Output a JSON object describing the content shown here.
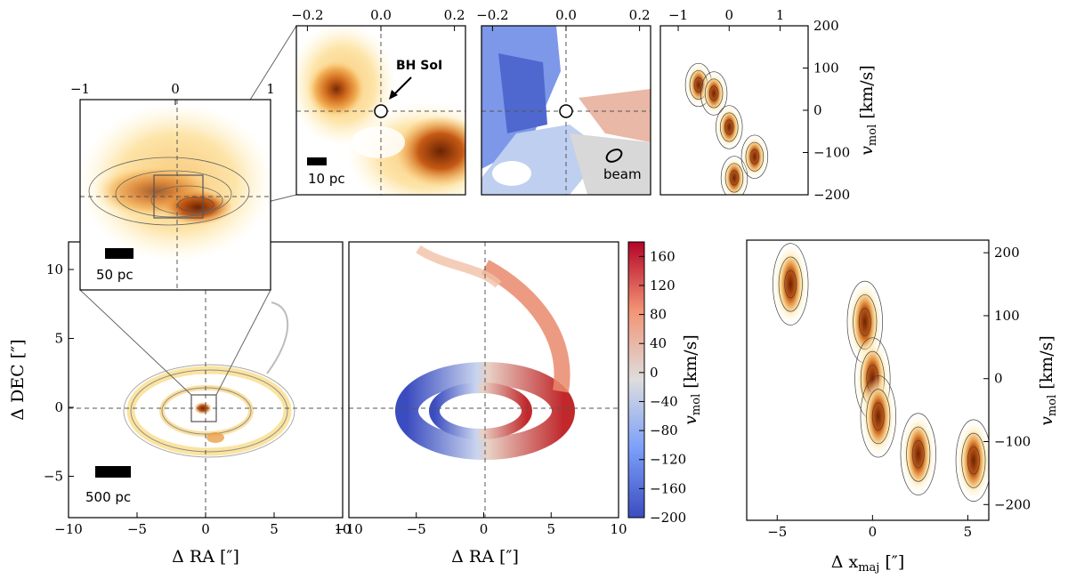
{
  "colors": {
    "flux_low": "#fff4c2",
    "flux_mid": "#f0a23c",
    "flux_high": "#8b3206",
    "vel_neg": "#3b4cc0",
    "vel_zero": "#dddddd",
    "vel_pos": "#b40426",
    "contour": "#555555"
  },
  "chart_data": [
    {
      "id": "large_scale_flux",
      "type": "heatmap",
      "title": "",
      "xlabel": "Δ RA [″]",
      "ylabel": "Δ DEC [″]",
      "xlim": [
        -10,
        10
      ],
      "ylim": [
        -8,
        12
      ],
      "xticks": [
        "−10",
        "−5",
        "0",
        "5",
        "10"
      ],
      "yticks": [
        "−5",
        "0",
        "5",
        "10"
      ],
      "annotations": {
        "scale_bar": "500 pc"
      },
      "features": [
        {
          "name": "nuclear_peak",
          "x": -0.2,
          "y": 0.2
        },
        {
          "name": "ring_clump",
          "x": 0.6,
          "y": -2.7
        }
      ]
    },
    {
      "id": "large_scale_velocity",
      "type": "heatmap",
      "xlabel": "Δ RA [″]",
      "xlim": [
        -10,
        10
      ],
      "ylim": [
        -8,
        12
      ],
      "xticks": [
        "−10",
        "−5",
        "0",
        "5",
        "10"
      ],
      "colorbar": {
        "label": "v_mol [km/s]",
        "label_main": "v",
        "label_sub": "mol",
        "label_unit": " [km/s]",
        "range": [
          -200,
          180
        ],
        "ticks": [
          "−200",
          "−160",
          "−120",
          "−80",
          "−40",
          "0",
          "40",
          "80",
          "120",
          "160"
        ]
      }
    },
    {
      "id": "inset_flux",
      "type": "heatmap",
      "xlim": [
        -1,
        1
      ],
      "xticks": [
        "−1",
        "0",
        "1"
      ],
      "annotations": {
        "scale_bar": "50 pc"
      }
    },
    {
      "id": "zoom_flux",
      "type": "heatmap",
      "xlim": [
        -0.23,
        0.23
      ],
      "xticks": [
        "−0.2",
        "0.0",
        "0.2"
      ],
      "annotations": {
        "bh_label": "BH SoI",
        "scale_bar": "10 pc"
      }
    },
    {
      "id": "zoom_velocity",
      "type": "heatmap",
      "xlim": [
        -0.23,
        0.23
      ],
      "xticks": [
        "−0.2",
        "0.0",
        "0.2"
      ],
      "annotations": {
        "beam_label": "beam"
      }
    },
    {
      "id": "zoom_pv",
      "type": "heatmap",
      "xlim": [
        -1.35,
        1.55
      ],
      "ylim": [
        -200,
        200
      ],
      "xticks": [
        "−1",
        "0",
        "1"
      ],
      "yticks": [
        "200",
        "100",
        "0",
        "−100",
        "−200"
      ],
      "ylabel": "v_mol [km/s]",
      "ylabel_main": "v",
      "ylabel_sub": "mol",
      "ylabel_unit": " [km/s]",
      "values": [
        {
          "x": -0.6,
          "v": 60
        },
        {
          "x": -0.3,
          "v": 40
        },
        {
          "x": 0.0,
          "v": -40
        },
        {
          "x": 0.1,
          "v": -160
        },
        {
          "x": 0.5,
          "v": -110
        }
      ]
    },
    {
      "id": "large_pv",
      "type": "heatmap",
      "xlabel": "Δ x_maj [″]",
      "xlabel_main": "Δ x",
      "xlabel_sub": "maj",
      "xlabel_unit": " [″]",
      "ylabel": "v_mol [km/s]",
      "ylabel_main": "v",
      "ylabel_sub": "mol",
      "ylabel_unit": " [km/s]",
      "xlim": [
        -6.6,
        6.1
      ],
      "ylim": [
        -225,
        220
      ],
      "xticks": [
        "−5",
        "0",
        "5"
      ],
      "yticks": [
        "200",
        "100",
        "0",
        "−100",
        "−200"
      ],
      "values": [
        {
          "x": -4.3,
          "v": 150
        },
        {
          "x": -0.4,
          "v": 90
        },
        {
          "x": 0.0,
          "v": 0
        },
        {
          "x": 0.3,
          "v": -60
        },
        {
          "x": 2.4,
          "v": -120
        },
        {
          "x": 5.3,
          "v": -130
        }
      ]
    }
  ]
}
